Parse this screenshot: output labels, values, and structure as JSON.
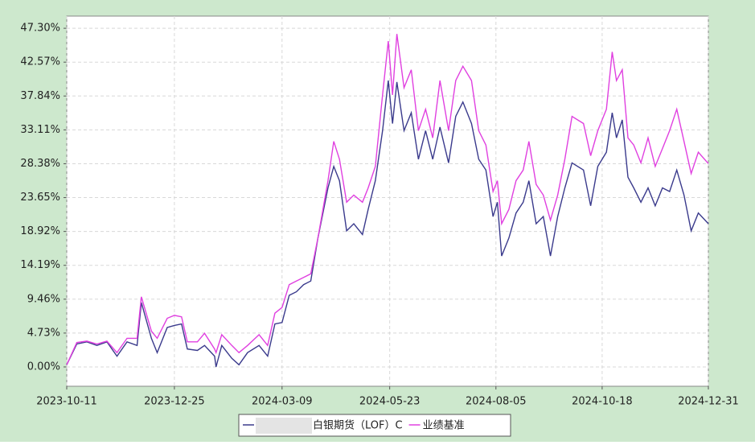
{
  "chart_data": {
    "type": "line",
    "x": [
      "2023-10-11",
      "2023-10-18",
      "2023-10-25",
      "2023-11-01",
      "2023-11-08",
      "2023-11-15",
      "2023-11-22",
      "2023-11-29",
      "2023-12-02",
      "2023-12-09",
      "2023-12-13",
      "2023-12-20",
      "2023-12-25",
      "2023-12-30",
      "2024-01-03",
      "2024-01-10",
      "2024-01-15",
      "2024-01-22",
      "2024-01-23",
      "2024-01-27",
      "2024-02-03",
      "2024-02-08",
      "2024-02-14",
      "2024-02-22",
      "2024-02-28",
      "2024-03-04",
      "2024-03-09",
      "2024-03-14",
      "2024-03-19",
      "2024-03-24",
      "2024-03-29",
      "2024-04-03",
      "2024-04-10",
      "2024-04-14",
      "2024-04-18",
      "2024-04-23",
      "2024-04-28",
      "2024-05-04",
      "2024-05-08",
      "2024-05-13",
      "2024-05-18",
      "2024-05-22",
      "2024-05-25",
      "2024-05-28",
      "2024-06-02",
      "2024-06-07",
      "2024-06-12",
      "2024-06-17",
      "2024-06-22",
      "2024-06-27",
      "2024-07-03",
      "2024-07-08",
      "2024-07-13",
      "2024-07-19",
      "2024-07-24",
      "2024-07-29",
      "2024-08-03",
      "2024-08-06",
      "2024-08-09",
      "2024-08-14",
      "2024-08-19",
      "2024-08-24",
      "2024-08-28",
      "2024-09-02",
      "2024-09-07",
      "2024-09-12",
      "2024-09-17",
      "2024-09-22",
      "2024-09-27",
      "2024-10-05",
      "2024-10-10",
      "2024-10-15",
      "2024-10-21",
      "2024-10-25",
      "2024-10-28",
      "2024-11-01",
      "2024-11-05",
      "2024-11-09",
      "2024-11-14",
      "2024-11-19",
      "2024-11-24",
      "2024-11-29",
      "2024-12-04",
      "2024-12-09",
      "2024-12-14",
      "2024-12-19",
      "2024-12-24",
      "2024-12-31"
    ],
    "series": [
      {
        "name": "白银期货（LOF）C",
        "color": "#3a3a8c",
        "values": [
          0.3,
          3.2,
          3.5,
          3.0,
          3.5,
          1.5,
          3.5,
          3.0,
          9.0,
          4.0,
          2.0,
          5.5,
          5.8,
          6.0,
          2.5,
          2.3,
          3.0,
          1.5,
          0.0,
          3.0,
          1.2,
          0.3,
          2.0,
          3.0,
          1.5,
          6.0,
          6.2,
          10.0,
          10.5,
          11.5,
          12.0,
          18.0,
          25.0,
          28.0,
          26.0,
          19.0,
          20.0,
          18.5,
          22.0,
          26.0,
          33.0,
          40.0,
          34.0,
          39.8,
          33.0,
          35.5,
          29.0,
          33.0,
          29.0,
          33.5,
          28.5,
          35.0,
          37.0,
          34.0,
          29.0,
          27.5,
          21.0,
          23.0,
          15.5,
          18.0,
          21.5,
          23.0,
          26.0,
          20.0,
          21.0,
          15.5,
          21.0,
          25.0,
          28.5,
          27.5,
          22.5,
          28.0,
          30.0,
          35.5,
          32.0,
          34.5,
          26.5,
          25.0,
          23.0,
          25.0,
          22.5,
          25.0,
          24.5,
          27.5,
          24.0,
          19.0,
          21.5,
          20.0
        ]
      },
      {
        "name": "业绩基准",
        "color": "#e040e0",
        "values": [
          0.3,
          3.4,
          3.6,
          3.2,
          3.6,
          2.0,
          4.0,
          4.0,
          9.8,
          5.0,
          4.0,
          6.8,
          7.2,
          7.0,
          3.5,
          3.5,
          4.7,
          2.5,
          2.0,
          4.5,
          3.0,
          2.0,
          3.0,
          4.5,
          3.0,
          7.5,
          8.3,
          11.5,
          12.0,
          12.5,
          13.0,
          18.0,
          26.0,
          31.5,
          29.0,
          23.0,
          24.0,
          23.0,
          25.0,
          28.0,
          38.0,
          45.5,
          38.0,
          46.5,
          39.0,
          41.5,
          33.0,
          36.0,
          32.0,
          40.0,
          33.0,
          40.0,
          42.0,
          40.0,
          33.0,
          31.0,
          24.5,
          26.0,
          20.0,
          22.0,
          26.0,
          27.5,
          31.5,
          25.5,
          24.0,
          20.5,
          24.0,
          29.0,
          35.0,
          34.0,
          29.5,
          33.0,
          36.0,
          44.0,
          40.0,
          41.5,
          32.0,
          31.0,
          28.5,
          32.0,
          28.0,
          30.5,
          33.0,
          36.0,
          31.5,
          27.0,
          30.0,
          28.4
        ]
      }
    ],
    "xlim": [
      "2023-10-11",
      "2024-12-31"
    ],
    "xticks": [
      "2023-10-11",
      "2023-12-25",
      "2024-03-09",
      "2024-05-23",
      "2024-08-05",
      "2024-10-18",
      "2024-12-31"
    ],
    "ylim": [
      -2.7,
      49.0
    ],
    "yticks": [
      {
        "value": 0,
        "label": "0.00%"
      },
      {
        "value": 4.73,
        "label": "4.73%"
      },
      {
        "value": 9.46,
        "label": "9.46%"
      },
      {
        "value": 14.19,
        "label": "14.19%"
      },
      {
        "value": 18.92,
        "label": "18.92%"
      },
      {
        "value": 23.65,
        "label": "23.65%"
      },
      {
        "value": 28.38,
        "label": "28.38%"
      },
      {
        "value": 33.11,
        "label": "33.11%"
      },
      {
        "value": 37.84,
        "label": "37.84%"
      },
      {
        "value": 42.57,
        "label": "42.57%"
      },
      {
        "value": 47.3,
        "label": "47.30%"
      }
    ],
    "grid": true
  }
}
